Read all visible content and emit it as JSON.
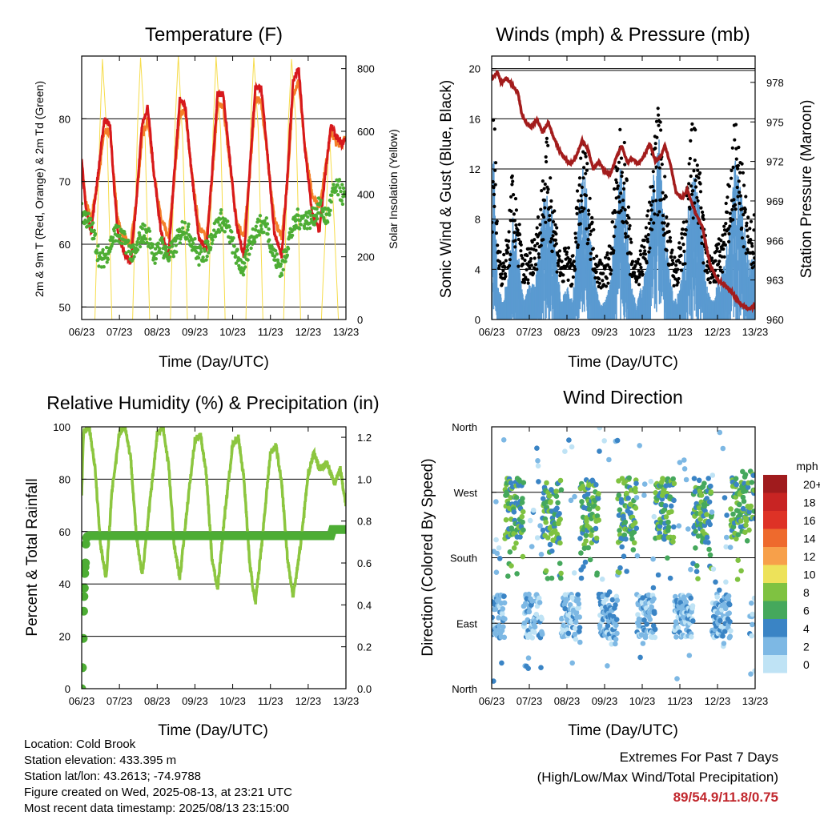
{
  "colors": {
    "temp2m": "#d7191c",
    "temp9m": "#f4802a",
    "dewpoint": "#4dad34",
    "solar": "#f6dc4a",
    "wind": "#5a9ad1",
    "gust": "#000000",
    "pressure": "#a31c1c",
    "rh": "#8cc63f",
    "precip": "#4dad34"
  },
  "chart_data": [
    {
      "type": "line",
      "title": "Temperature (F)",
      "xlabel": "Time (Day/UTC)",
      "ylabel": "2m & 9m T (Red, Orange) & 2m Td (Green)",
      "ylabel_right": "Solar Insolation (Yellow)",
      "x_ticks": [
        "06/23",
        "07/23",
        "08/23",
        "09/23",
        "10/23",
        "11/23",
        "12/23",
        "13/23"
      ],
      "ylim": [
        48,
        90
      ],
      "yticks": [
        50,
        60,
        70,
        80
      ],
      "ylim_right": [
        0,
        840
      ],
      "yticks_right": [
        0,
        200,
        400,
        600,
        800
      ],
      "grid": "horizontal",
      "days": [
        6,
        7,
        8,
        9,
        10,
        11,
        12,
        13
      ],
      "series": [
        {
          "name": "2m T",
          "axis": "left",
          "x": [
            6.0,
            6.1,
            6.25,
            6.45,
            6.6,
            6.75,
            6.85,
            6.95,
            7.1,
            7.3,
            7.45,
            7.6,
            7.75,
            7.9,
            8.1,
            8.3,
            8.45,
            8.6,
            8.75,
            8.9,
            9.1,
            9.3,
            9.45,
            9.6,
            9.75,
            9.9,
            10.1,
            10.3,
            10.45,
            10.6,
            10.75,
            10.9,
            11.1,
            11.3,
            11.45,
            11.6,
            11.75,
            11.9,
            12.1,
            12.3,
            12.45,
            12.6,
            12.75,
            12.9,
            13.0
          ],
          "y": [
            74,
            66,
            62,
            72,
            80,
            79,
            70,
            62,
            59,
            57,
            67,
            79,
            82,
            72,
            62,
            58,
            71,
            83,
            82,
            72,
            61,
            59,
            71,
            84,
            84,
            75,
            63,
            58,
            72,
            85,
            85,
            76,
            62,
            58,
            71,
            86,
            88,
            76,
            65,
            62,
            71,
            79,
            77,
            76,
            77
          ]
        },
        {
          "name": "9m T",
          "axis": "left",
          "x": [
            6.0,
            6.1,
            6.25,
            6.45,
            6.6,
            6.75,
            6.85,
            6.95,
            7.1,
            7.3,
            7.45,
            7.6,
            7.75,
            7.9,
            8.1,
            8.3,
            8.45,
            8.6,
            8.75,
            8.9,
            9.1,
            9.3,
            9.45,
            9.6,
            9.75,
            9.9,
            10.1,
            10.3,
            10.45,
            10.6,
            10.75,
            10.9,
            11.1,
            11.3,
            11.45,
            11.6,
            11.75,
            11.9,
            12.1,
            12.3,
            12.45,
            12.6,
            12.75,
            12.9,
            13.0
          ],
          "y": [
            73,
            67,
            64,
            71,
            78,
            78,
            71,
            64,
            61,
            60,
            67,
            77,
            80,
            72,
            64,
            61,
            70,
            81,
            81,
            72,
            63,
            61,
            70,
            82,
            82,
            74,
            64,
            61,
            71,
            83,
            83,
            75,
            64,
            61,
            70,
            84,
            86,
            76,
            68,
            66,
            72,
            78,
            76,
            76,
            77
          ]
        },
        {
          "name": "2m Td",
          "axis": "left",
          "x": [
            6.0,
            6.15,
            6.3,
            6.5,
            6.7,
            6.9,
            7.05,
            7.2,
            7.4,
            7.6,
            7.8,
            7.95,
            8.1,
            8.3,
            8.5,
            8.7,
            8.9,
            9.1,
            9.3,
            9.5,
            9.7,
            9.9,
            10.1,
            10.3,
            10.5,
            10.7,
            10.9,
            11.1,
            11.3,
            11.5,
            11.7,
            11.9,
            12.1,
            12.3,
            12.5,
            12.65,
            12.8,
            13.0
          ],
          "y": [
            65,
            64,
            62,
            57,
            59,
            62,
            61,
            60,
            58,
            62,
            61,
            58,
            60,
            58,
            60,
            63,
            61,
            58,
            59,
            62,
            64,
            62,
            58,
            56,
            61,
            63,
            63,
            58,
            56,
            61,
            64,
            64,
            64,
            66,
            64,
            68,
            69,
            67
          ]
        },
        {
          "name": "Solar Insolation",
          "axis": "right",
          "x": [
            6.0,
            6.35,
            6.48,
            6.55,
            6.68,
            6.8,
            7.35,
            7.48,
            7.56,
            7.68,
            7.8,
            8.35,
            8.48,
            8.56,
            8.68,
            8.8,
            9.35,
            9.48,
            9.56,
            9.68,
            9.8,
            10.35,
            10.48,
            10.56,
            10.68,
            10.8,
            11.35,
            11.48,
            11.56,
            11.68,
            11.8,
            12.35,
            12.48,
            12.56,
            12.68,
            12.8,
            13.0
          ],
          "y": [
            0,
            0,
            600,
            830,
            560,
            0,
            0,
            620,
            835,
            580,
            0,
            0,
            640,
            840,
            560,
            0,
            0,
            600,
            838,
            600,
            0,
            0,
            630,
            835,
            600,
            0,
            0,
            640,
            830,
            620,
            0,
            0,
            350,
            600,
            330,
            0,
            0
          ]
        }
      ]
    },
    {
      "type": "line",
      "title": "Winds (mph) & Pressure (mb)",
      "xlabel": "Time (Day/UTC)",
      "ylabel": "Sonic Wind & Gust (Blue, Black)",
      "ylabel_right": "Station Pressure (Maroon)",
      "x_ticks": [
        "06/23",
        "07/23",
        "08/23",
        "09/23",
        "10/23",
        "11/23",
        "12/23",
        "13/23"
      ],
      "ylim": [
        0,
        21
      ],
      "yticks": [
        0,
        4,
        8,
        12,
        16,
        20
      ],
      "ylim_right": [
        960,
        980
      ],
      "yticks_right": [
        960,
        963,
        966,
        969,
        972,
        975,
        978
      ],
      "grid": "horizontal",
      "days": [
        6,
        7,
        8,
        9,
        10,
        11,
        12,
        13
      ],
      "series": [
        {
          "name": "Sonic Wind",
          "axis": "left",
          "x": [
            6.0,
            6.05,
            6.15,
            6.3,
            6.45,
            6.55,
            6.7,
            6.85,
            7.0,
            7.15,
            7.3,
            7.45,
            7.55,
            7.7,
            7.85,
            8.0,
            8.15,
            8.3,
            8.45,
            8.55,
            8.7,
            8.85,
            9.0,
            9.15,
            9.3,
            9.45,
            9.55,
            9.7,
            9.85,
            10.0,
            10.15,
            10.3,
            10.45,
            10.55,
            10.7,
            10.85,
            11.0,
            11.15,
            11.3,
            11.45,
            11.55,
            11.7,
            11.85,
            12.0,
            12.15,
            12.3,
            12.45,
            12.55,
            12.7,
            12.85,
            13.0
          ],
          "y": [
            3,
            11,
            2,
            1,
            3,
            7,
            4,
            1,
            2,
            2,
            5,
            8,
            7,
            4,
            1,
            2,
            1,
            6,
            9,
            7,
            3,
            1,
            1,
            2,
            6,
            9,
            7,
            2,
            1,
            2,
            4,
            8,
            10,
            7,
            3,
            1,
            2,
            4,
            9,
            8,
            6,
            2,
            1,
            2,
            3,
            5,
            9,
            8,
            6,
            3,
            4
          ]
        },
        {
          "name": "Gust",
          "axis": "left",
          "x": [
            6.0,
            6.05,
            6.15,
            6.3,
            6.45,
            6.55,
            6.7,
            6.85,
            7.0,
            7.15,
            7.3,
            7.45,
            7.55,
            7.7,
            7.85,
            8.0,
            8.15,
            8.3,
            8.45,
            8.55,
            8.7,
            8.85,
            9.0,
            9.15,
            9.3,
            9.45,
            9.55,
            9.7,
            9.85,
            10.0,
            10.15,
            10.3,
            10.45,
            10.55,
            10.7,
            10.85,
            11.0,
            11.15,
            11.3,
            11.45,
            11.55,
            11.7,
            11.85,
            12.0,
            12.15,
            12.3,
            12.45,
            12.55,
            12.7,
            12.85,
            13.0
          ],
          "y": [
            6,
            16,
            6,
            4,
            6,
            10,
            7,
            4,
            5,
            6,
            8,
            12,
            10,
            7,
            4,
            5,
            4,
            9,
            12,
            10,
            6,
            4,
            4,
            5,
            10,
            13,
            11,
            5,
            4,
            5,
            7,
            12,
            14,
            11,
            6,
            4,
            5,
            7,
            13,
            12,
            9,
            5,
            4,
            5,
            6,
            9,
            13,
            12,
            9,
            6,
            7
          ]
        },
        {
          "name": "Station Pressure",
          "axis": "right",
          "x": [
            6.0,
            6.15,
            6.25,
            6.4,
            6.55,
            6.7,
            6.8,
            6.9,
            7.05,
            7.2,
            7.35,
            7.5,
            7.65,
            7.8,
            7.95,
            8.1,
            8.25,
            8.4,
            8.55,
            8.7,
            8.85,
            9.0,
            9.15,
            9.3,
            9.45,
            9.6,
            9.75,
            9.9,
            10.05,
            10.2,
            10.35,
            10.5,
            10.6,
            10.75,
            10.9,
            11.05,
            11.2,
            11.4,
            11.6,
            11.8,
            12.0,
            12.2,
            12.4,
            12.6,
            12.8,
            13.0
          ],
          "y": [
            978.2,
            978.8,
            978.0,
            978.3,
            977.8,
            977.2,
            975.6,
            975.0,
            974.6,
            975.2,
            974.2,
            975.0,
            973.8,
            972.8,
            972.2,
            971.8,
            972.4,
            973.6,
            973.0,
            971.4,
            972.0,
            971.2,
            971.0,
            972.2,
            973.2,
            972.0,
            972.2,
            971.8,
            972.4,
            973.4,
            972.0,
            972.4,
            973.2,
            971.8,
            969.6,
            969.2,
            969.8,
            968.2,
            967.0,
            964.2,
            963.0,
            962.6,
            962.0,
            961.2,
            960.8,
            961.0
          ]
        }
      ]
    },
    {
      "type": "line",
      "title": "Relative Humidity (%) & Precipitation (in)",
      "xlabel": "Time (Day/UTC)",
      "ylabel": "Percent & Total Rainfall",
      "x_ticks": [
        "06/23",
        "07/23",
        "08/23",
        "09/23",
        "10/23",
        "11/23",
        "12/23",
        "13/23"
      ],
      "ylim": [
        0,
        100
      ],
      "yticks": [
        0,
        20,
        40,
        60,
        80,
        100
      ],
      "ylim_right": [
        0,
        1.25
      ],
      "yticks_right": [
        0.0,
        0.2,
        0.4,
        0.6,
        0.8,
        1.0,
        1.2
      ],
      "grid": "horizontal",
      "days": [
        6,
        7,
        8,
        9,
        10,
        11,
        12,
        13
      ],
      "series": [
        {
          "name": "Relative Humidity",
          "axis": "left",
          "x": [
            6.0,
            6.05,
            6.2,
            6.35,
            6.5,
            6.65,
            6.8,
            7.0,
            7.15,
            7.3,
            7.45,
            7.6,
            7.8,
            8.0,
            8.15,
            8.3,
            8.45,
            8.6,
            8.8,
            9.0,
            9.15,
            9.3,
            9.45,
            9.6,
            9.8,
            10.0,
            10.15,
            10.3,
            10.45,
            10.6,
            10.8,
            11.0,
            11.15,
            11.3,
            11.45,
            11.6,
            11.8,
            12.0,
            12.15,
            12.3,
            12.5,
            12.7,
            12.85,
            13.0
          ],
          "y": [
            75,
            98,
            100,
            85,
            55,
            42,
            75,
            98,
            100,
            88,
            58,
            43,
            70,
            97,
            100,
            86,
            55,
            42,
            70,
            95,
            97,
            82,
            50,
            38,
            68,
            93,
            96,
            80,
            48,
            32,
            60,
            90,
            93,
            78,
            50,
            35,
            55,
            82,
            90,
            84,
            86,
            78,
            84,
            70
          ]
        },
        {
          "name": "Total Precipitation",
          "axis": "right",
          "x": [
            6.0,
            6.02,
            6.04,
            6.05,
            6.06,
            6.07,
            6.08,
            6.09,
            6.1,
            6.11,
            6.13,
            6.15,
            6.2,
            12.6,
            12.65,
            12.75,
            13.0
          ],
          "y": [
            0.0,
            0.1,
            0.24,
            0.37,
            0.44,
            0.48,
            0.55,
            0.58,
            0.6,
            0.69,
            0.72,
            0.725,
            0.73,
            0.73,
            0.76,
            0.76,
            0.76
          ]
        }
      ]
    },
    {
      "type": "scatter",
      "title": "Wind Direction",
      "xlabel": "Time (Day/UTC)",
      "ylabel": "Direction (Colored By Speed)",
      "x_ticks": [
        "06/23",
        "07/23",
        "08/23",
        "09/23",
        "10/23",
        "11/23",
        "12/23",
        "13/23"
      ],
      "yticks": [
        "North",
        "East",
        "South",
        "West",
        "North"
      ],
      "ylim": [
        0,
        360
      ],
      "grid": "horizontal",
      "days": [
        6,
        7,
        8,
        9,
        10,
        11,
        12,
        13
      ],
      "legend": {
        "title": "mph",
        "labels": [
          "20+",
          "18",
          "16",
          "14",
          "12",
          "10",
          "8",
          "6",
          "4",
          "2",
          "0"
        ],
        "colors": [
          "#a01b1d",
          "#c82423",
          "#de3226",
          "#ee6a2d",
          "#f7a04a",
          "#ede25a",
          "#7fc241",
          "#45a85c",
          "#3a84c5",
          "#7db8e4",
          "#bfe3f5"
        ]
      }
    }
  ],
  "info": {
    "location": "Location: Cold Brook",
    "elevation": "Station elevation: 433.395 m",
    "latlon": "Station lat/lon: 43.2613; -74.9788",
    "created": "Figure created on Wed, 2025-08-13, at 23:21 UTC",
    "recent": "Most recent data timestamp: 2025/08/13 23:15:00"
  },
  "extremes": {
    "title": "Extremes For Past 7 Days",
    "subtitle": "(High/Low/Max Wind/Total Precipitation)",
    "values": "89/54.9/11.8/0.75"
  }
}
